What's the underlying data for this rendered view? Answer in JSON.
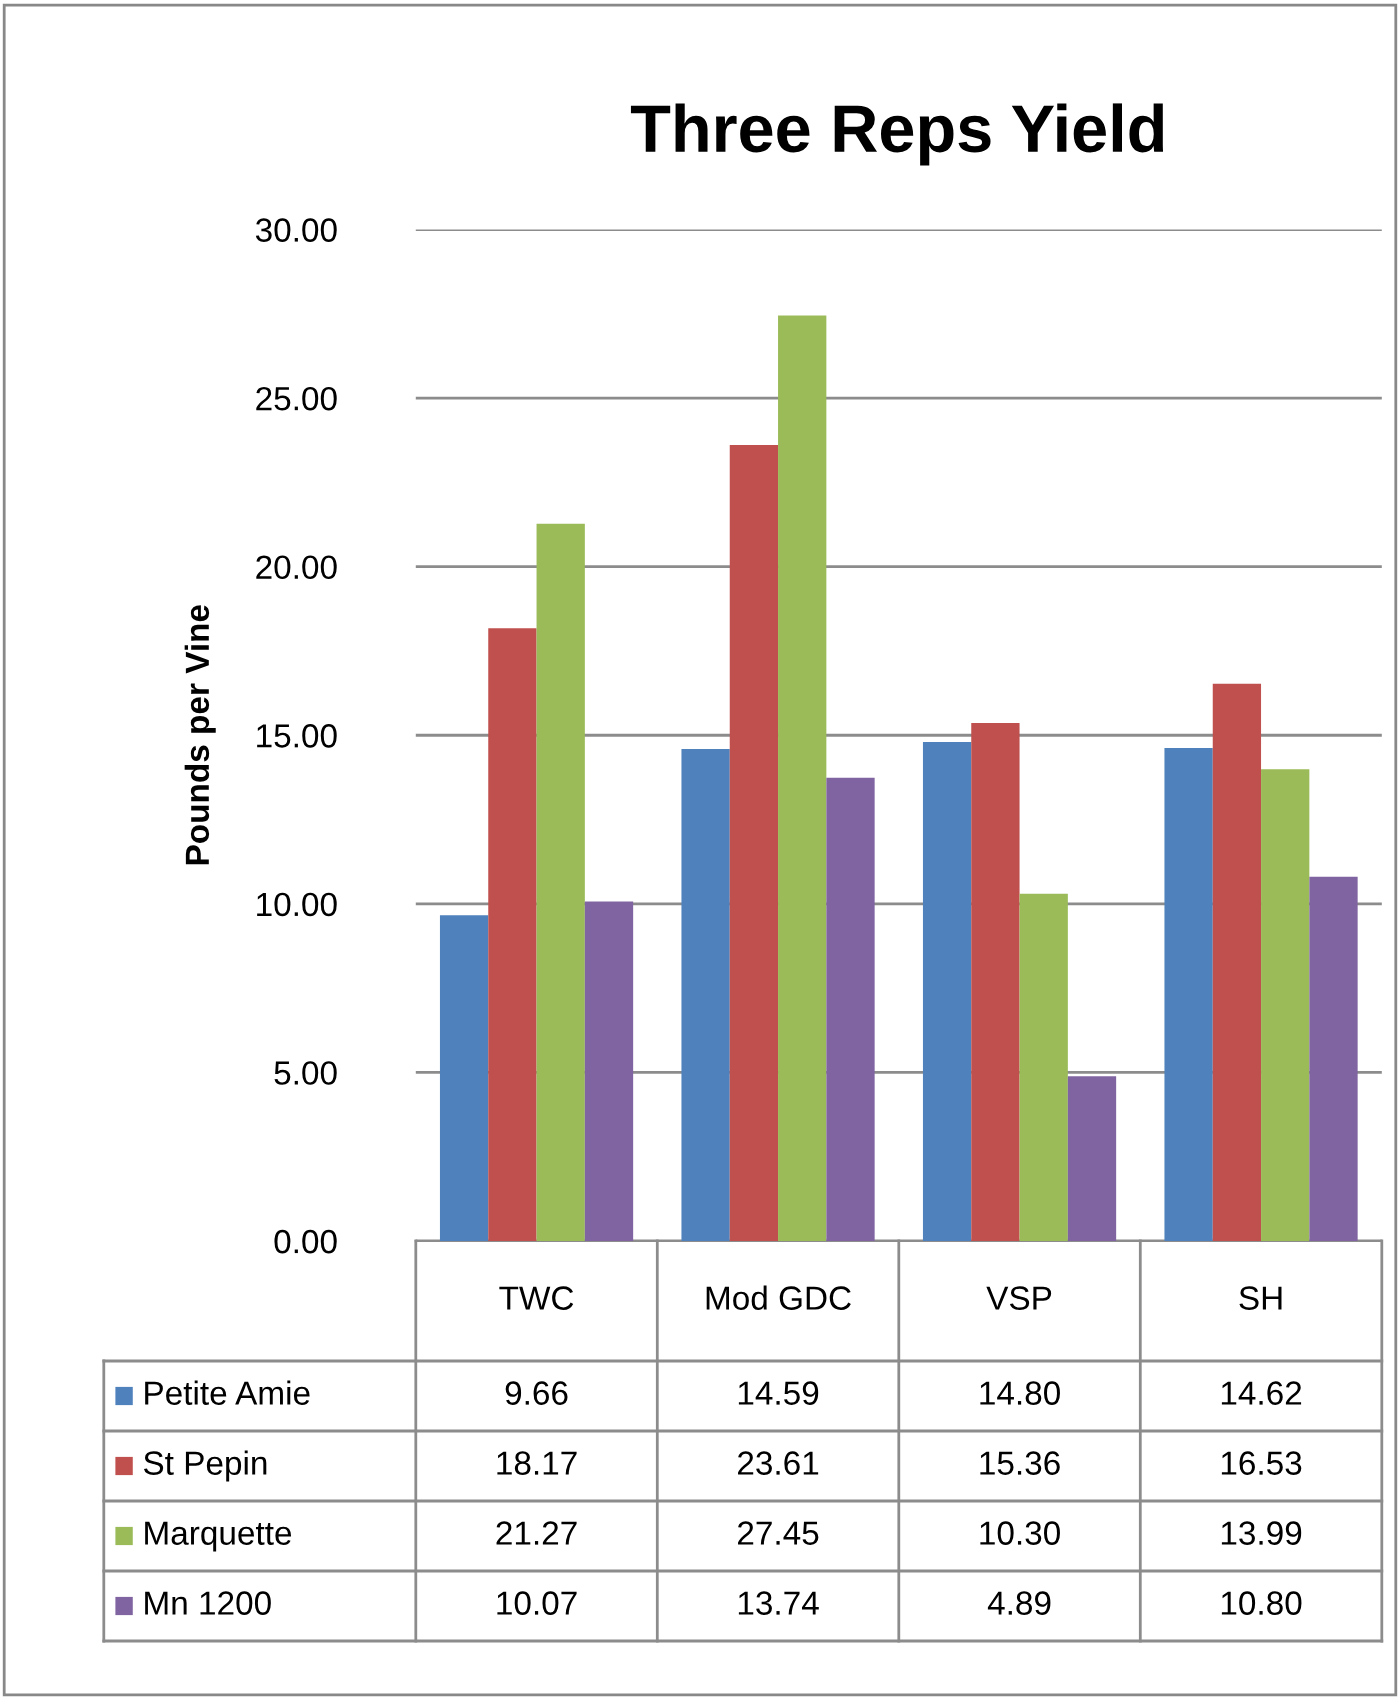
{
  "chart_data": {
    "type": "bar",
    "title": "Three Reps Yield",
    "ylabel": "Pounds per Vine",
    "categories": [
      "TWC",
      "Mod GDC",
      "VSP",
      "SH"
    ],
    "series": [
      {
        "name": "Petite Amie",
        "color": "#4f81bd",
        "values": [
          9.66,
          14.59,
          14.8,
          14.62
        ],
        "value_labels": [
          "9.66",
          "14.59",
          "14.80",
          "14.62"
        ]
      },
      {
        "name": "St Pepin",
        "color": "#c0504d",
        "values": [
          18.17,
          23.61,
          15.36,
          16.53
        ],
        "value_labels": [
          "18.17",
          "23.61",
          "15.36",
          "16.53"
        ]
      },
      {
        "name": "Marquette",
        "color": "#9bbb59",
        "values": [
          21.27,
          27.45,
          10.3,
          13.99
        ],
        "value_labels": [
          "21.27",
          "27.45",
          "10.30",
          "13.99"
        ]
      },
      {
        "name": "Mn 1200",
        "color": "#8064a2",
        "values": [
          10.07,
          13.74,
          4.89,
          10.8
        ],
        "value_labels": [
          "10.07",
          "13.74",
          "4.89",
          "10.80"
        ]
      }
    ],
    "ylim": [
      0,
      30
    ],
    "yticks": [
      {
        "value": 0,
        "label": "0.00"
      },
      {
        "value": 5,
        "label": "5.00"
      },
      {
        "value": 10,
        "label": "10.00"
      },
      {
        "value": 15,
        "label": "15.00"
      },
      {
        "value": 20,
        "label": "20.00"
      },
      {
        "value": 25,
        "label": "25.00"
      },
      {
        "value": 30,
        "label": "30.00"
      }
    ],
    "grid": "y",
    "legend": "bottom"
  }
}
